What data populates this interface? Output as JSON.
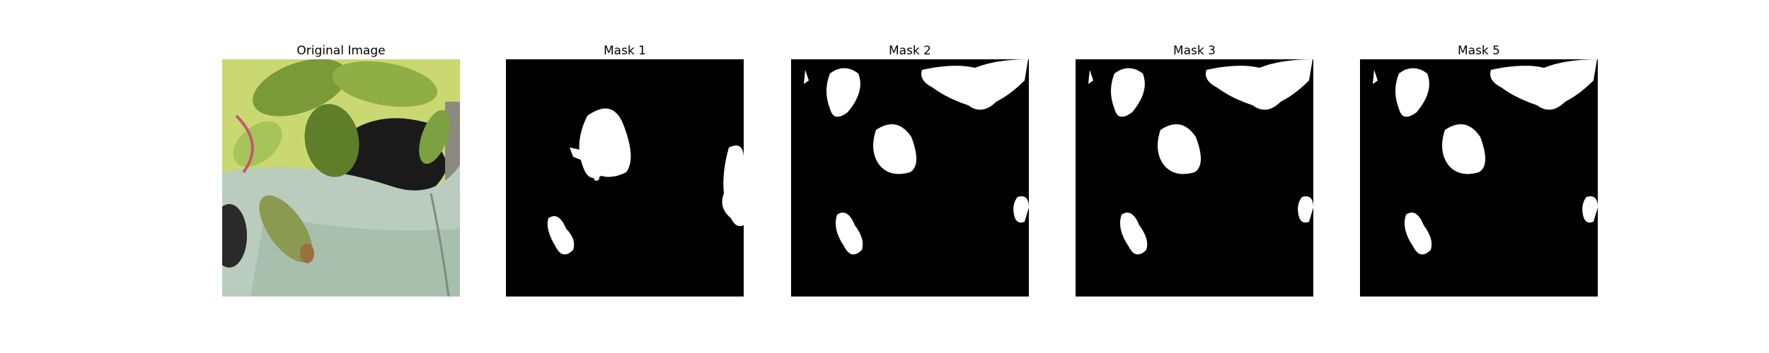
{
  "figure": {
    "panels": [
      {
        "title": "Original Image",
        "kind": "photo"
      },
      {
        "title": "Mask 1",
        "kind": "mask"
      },
      {
        "title": "Mask 2",
        "kind": "mask"
      },
      {
        "title": "Mask 3",
        "kind": "mask"
      },
      {
        "title": "Mask 5",
        "kind": "mask"
      }
    ]
  },
  "colors": {
    "background": "#ffffff",
    "mask_background": "#000000",
    "mask_foreground": "#ffffff"
  }
}
